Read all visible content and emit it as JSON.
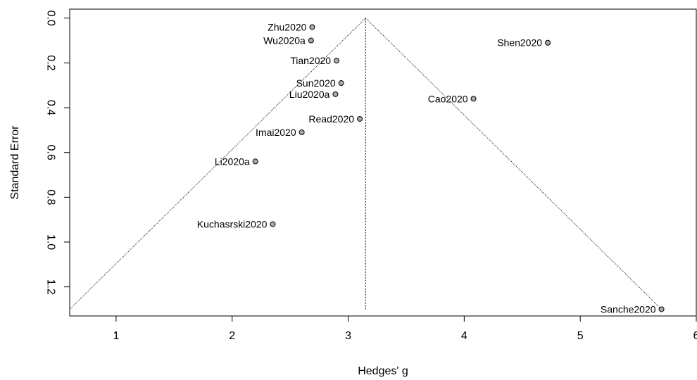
{
  "chart_data": {
    "type": "scatter",
    "subtype": "funnel-plot",
    "title": "",
    "xlabel": "Hedges' g",
    "ylabel": "Standard Error",
    "xlim": [
      0.6,
      6.0
    ],
    "ylim": [
      1.33,
      -0.04
    ],
    "y_axis_inverted": true,
    "x_ticks": [
      1,
      2,
      3,
      4,
      5,
      6
    ],
    "y_ticks": [
      0.0,
      0.2,
      0.4,
      0.6,
      0.8,
      1.0,
      1.2
    ],
    "x_tick_labels": [
      "1",
      "2",
      "3",
      "4",
      "5",
      "6"
    ],
    "y_tick_labels": [
      "0.0",
      "0.2",
      "0.4",
      "0.6",
      "0.8",
      "1.0",
      "1.2"
    ],
    "grid": false,
    "legend": "none",
    "pooled_estimate": 3.15,
    "funnel_max_se": 1.3,
    "funnel_lower_x_at_max_se": 0.6,
    "funnel_upper_x_at_max_se": 5.7,
    "points": [
      {
        "label": "Zhu2020",
        "x": 2.69,
        "y": 0.04,
        "label_side": "left"
      },
      {
        "label": "Wu2020a",
        "x": 2.68,
        "y": 0.1,
        "label_side": "left"
      },
      {
        "label": "Shen2020",
        "x": 4.72,
        "y": 0.11,
        "label_side": "left"
      },
      {
        "label": "Tian2020",
        "x": 2.9,
        "y": 0.19,
        "label_side": "left"
      },
      {
        "label": "Sun2020",
        "x": 2.94,
        "y": 0.29,
        "label_side": "left"
      },
      {
        "label": "Liu2020a",
        "x": 2.89,
        "y": 0.34,
        "label_side": "left"
      },
      {
        "label": "Cao2020",
        "x": 4.08,
        "y": 0.36,
        "label_side": "left"
      },
      {
        "label": "Read2020",
        "x": 3.1,
        "y": 0.45,
        "label_side": "left"
      },
      {
        "label": "Imai2020",
        "x": 2.6,
        "y": 0.51,
        "label_side": "left"
      },
      {
        "label": "Li2020a",
        "x": 2.2,
        "y": 0.64,
        "label_side": "left"
      },
      {
        "label": "Kuchasrski2020",
        "x": 2.35,
        "y": 0.92,
        "label_side": "left"
      },
      {
        "label": "Sanche2020",
        "x": 5.7,
        "y": 1.3,
        "label_side": "left"
      }
    ],
    "colors": {
      "point_fill": "#a9a9a9",
      "point_stroke": "#000000",
      "lines": "#000000",
      "axes": "#000000"
    }
  }
}
